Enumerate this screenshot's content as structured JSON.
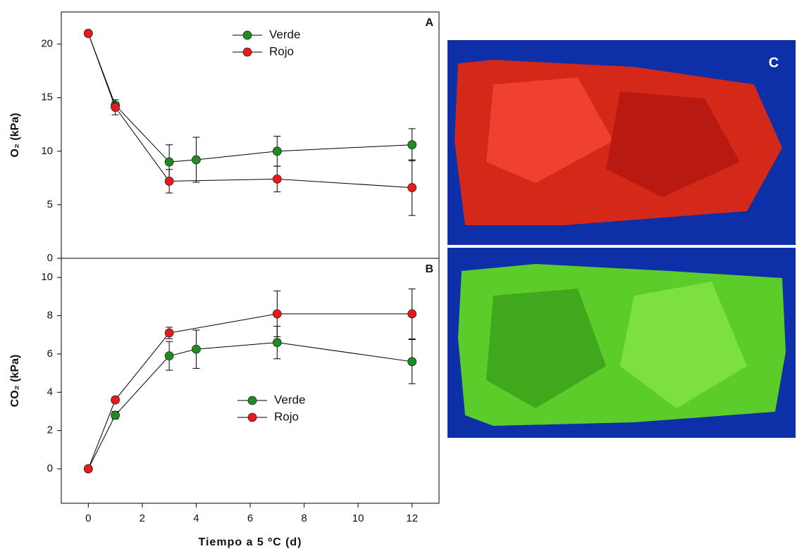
{
  "chart_data": [
    {
      "type": "line",
      "panel": "A",
      "ylabel": "O₂ (kPa)",
      "xlim": [
        -1,
        13
      ],
      "ylim": [
        0,
        23
      ],
      "yticks": [
        0,
        5,
        10,
        15,
        20
      ],
      "legend": "top-center",
      "series": [
        {
          "name": "Verde",
          "color": "#1f8c1f",
          "x": [
            0,
            1,
            3,
            4,
            7,
            12
          ],
          "values": [
            21,
            14.3,
            9,
            9.2,
            10,
            10.6
          ],
          "errors": [
            0,
            0.3,
            1.6,
            2.1,
            1.4,
            1.5
          ]
        },
        {
          "name": "Rojo",
          "color": "#ea1a1a",
          "x": [
            0,
            1,
            3,
            7,
            12
          ],
          "values": [
            21,
            14.1,
            7.2,
            7.4,
            6.6
          ],
          "errors": [
            0,
            0.7,
            1.1,
            1.2,
            2.6
          ]
        }
      ]
    },
    {
      "type": "line",
      "panel": "B",
      "ylabel": "CO₂ (kPa)",
      "xlabel": "Tiempo a 5 ºC (d)",
      "xlim": [
        -1,
        13
      ],
      "xticks": [
        0,
        2,
        4,
        6,
        8,
        10,
        12
      ],
      "ylim": [
        -1.8,
        11
      ],
      "yticks": [
        0,
        2,
        4,
        6,
        8,
        10
      ],
      "legend": "center",
      "series": [
        {
          "name": "Verde",
          "color": "#1f8c1f",
          "x": [
            0,
            1,
            3,
            4,
            7,
            12
          ],
          "values": [
            0,
            2.8,
            5.9,
            6.25,
            6.6,
            5.6
          ],
          "errors": [
            0,
            0.2,
            0.75,
            1.0,
            0.85,
            1.15
          ]
        },
        {
          "name": "Rojo",
          "color": "#ea1a1a",
          "x": [
            0,
            1,
            3,
            7,
            12
          ],
          "values": [
            0,
            3.6,
            7.1,
            8.1,
            8.1
          ],
          "errors": [
            0,
            0.15,
            0.3,
            1.2,
            1.3
          ]
        }
      ]
    }
  ],
  "photo": {
    "label": "C"
  }
}
